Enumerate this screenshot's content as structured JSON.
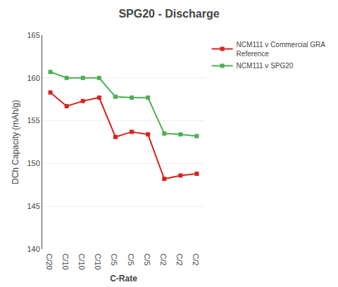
{
  "chart_data": {
    "type": "line",
    "title": "SPG20 - Discharge",
    "xlabel": "C-Rate",
    "ylabel": "DCh Capacity (mAh/g)",
    "categories": [
      "C/20",
      "C/10",
      "C/10",
      "C/10",
      "C/5",
      "C/5",
      "C/5",
      "C/2",
      "C/2",
      "C/2"
    ],
    "series": [
      {
        "name": "NCM111 v Commercial GRA\nReference",
        "color": "#d9221c",
        "marker": "square",
        "line_style": "solid",
        "values": [
          158.3,
          156.7,
          157.3,
          157.7,
          153.1,
          153.7,
          153.4,
          148.2,
          148.6,
          148.8
        ]
      },
      {
        "name": "NCM111 v SPG20",
        "color": "#4caf50",
        "marker": "square",
        "line_style": "solid",
        "values": [
          160.7,
          160.0,
          160.0,
          160.0,
          157.8,
          157.7,
          157.7,
          153.5,
          153.4,
          153.2
        ]
      }
    ],
    "ylim": [
      140,
      165
    ],
    "yticks": [
      140,
      145,
      150,
      155,
      160,
      165
    ],
    "grid": true,
    "legend": "right"
  }
}
